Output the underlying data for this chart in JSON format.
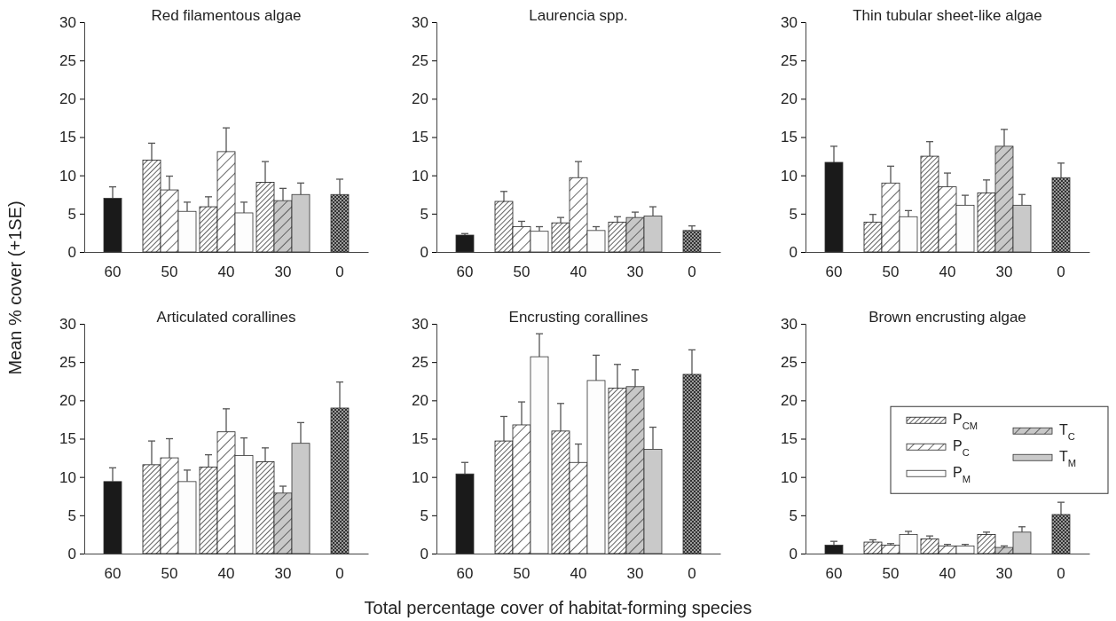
{
  "chart_data": [
    {
      "type": "bar",
      "title": "Red filamentous algae",
      "ylabel": "Mean % cover (+1SE)",
      "categories": [
        "60",
        "50",
        "40",
        "30",
        "0"
      ],
      "ylim": [
        0,
        30
      ],
      "yticks": [
        0,
        5,
        10,
        15,
        20,
        25,
        30
      ],
      "legend": false,
      "series": [
        {
          "color": "#1a1a1a",
          "values": [
            7.0,
            null,
            null,
            null,
            null
          ],
          "errors": [
            1.5,
            null,
            null,
            null,
            null
          ]
        },
        {
          "color": "#1c1c1c",
          "values": [
            null,
            12.0,
            5.9,
            9.1,
            null
          ],
          "errors": [
            null,
            2.2,
            1.3,
            2.7,
            null
          ]
        },
        {
          "color": "#262626",
          "values": [
            null,
            8.1,
            13.1,
            null,
            null
          ],
          "errors": [
            null,
            1.8,
            3.1,
            null,
            null
          ]
        },
        {
          "color": "#fdfdfd",
          "values": [
            null,
            5.3,
            5.1,
            null,
            null
          ],
          "errors": [
            null,
            1.2,
            1.4,
            null,
            null
          ]
        },
        {
          "color": "#303030",
          "values": [
            null,
            null,
            null,
            6.7,
            null
          ],
          "errors": [
            null,
            null,
            null,
            1.6,
            null
          ]
        },
        {
          "color": "#c9c9c9",
          "values": [
            null,
            null,
            null,
            7.5,
            null
          ],
          "errors": [
            null,
            null,
            null,
            1.5,
            null
          ]
        },
        {
          "color": "#333333",
          "values": [
            null,
            null,
            null,
            null,
            7.5
          ],
          "errors": [
            null,
            null,
            null,
            null,
            2.0
          ]
        }
      ]
    },
    {
      "type": "bar",
      "title": "Laurencia spp.",
      "categories": [
        "60",
        "50",
        "40",
        "30",
        "0"
      ],
      "ylim": [
        0,
        30
      ],
      "yticks": [
        0,
        5,
        10,
        15,
        20,
        25,
        30
      ],
      "legend": false,
      "series": [
        {
          "color": "#1a1a1a",
          "values": [
            2.2,
            null,
            null,
            null,
            null
          ],
          "errors": [
            0.2,
            null,
            null,
            null,
            null
          ]
        },
        {
          "color": "#1c1c1c",
          "values": [
            null,
            6.6,
            3.8,
            3.9,
            null
          ],
          "errors": [
            null,
            1.3,
            0.7,
            0.7,
            null
          ]
        },
        {
          "color": "#262626",
          "values": [
            null,
            3.3,
            9.7,
            null,
            null
          ],
          "errors": [
            null,
            0.7,
            2.1,
            null,
            null
          ]
        },
        {
          "color": "#fdfdfd",
          "values": [
            null,
            2.7,
            2.8,
            null,
            null
          ],
          "errors": [
            null,
            0.6,
            0.5,
            null,
            null
          ]
        },
        {
          "color": "#303030",
          "values": [
            null,
            null,
            null,
            4.5,
            null
          ],
          "errors": [
            null,
            null,
            null,
            0.7,
            null
          ]
        },
        {
          "color": "#c9c9c9",
          "values": [
            null,
            null,
            null,
            4.7,
            null
          ],
          "errors": [
            null,
            null,
            null,
            1.2,
            null
          ]
        },
        {
          "color": "#333333",
          "values": [
            null,
            null,
            null,
            null,
            2.8
          ],
          "errors": [
            null,
            null,
            null,
            null,
            0.6
          ]
        }
      ]
    },
    {
      "type": "bar",
      "title": "Thin tubular sheet-like algae",
      "categories": [
        "60",
        "50",
        "40",
        "30",
        "0"
      ],
      "ylim": [
        0,
        30
      ],
      "yticks": [
        0,
        5,
        10,
        15,
        20,
        25,
        30
      ],
      "legend": false,
      "series": [
        {
          "color": "#1a1a1a",
          "values": [
            11.7,
            null,
            null,
            null,
            null
          ],
          "errors": [
            2.1,
            null,
            null,
            null,
            null
          ]
        },
        {
          "color": "#1c1c1c",
          "values": [
            null,
            3.9,
            12.5,
            7.7,
            null
          ],
          "errors": [
            null,
            1.0,
            1.9,
            1.7,
            null
          ]
        },
        {
          "color": "#262626",
          "values": [
            null,
            9.0,
            8.5,
            null,
            null
          ],
          "errors": [
            null,
            2.2,
            1.8,
            null,
            null
          ]
        },
        {
          "color": "#fdfdfd",
          "values": [
            null,
            4.6,
            6.1,
            null,
            null
          ],
          "errors": [
            null,
            0.8,
            1.3,
            null,
            null
          ]
        },
        {
          "color": "#303030",
          "values": [
            null,
            null,
            null,
            13.8,
            null
          ],
          "errors": [
            null,
            null,
            null,
            2.2,
            null
          ]
        },
        {
          "color": "#c9c9c9",
          "values": [
            null,
            null,
            null,
            6.1,
            null
          ],
          "errors": [
            null,
            null,
            null,
            1.4,
            null
          ]
        },
        {
          "color": "#333333",
          "values": [
            null,
            null,
            null,
            null,
            9.7
          ],
          "errors": [
            null,
            null,
            null,
            null,
            1.9
          ]
        }
      ]
    },
    {
      "type": "bar",
      "title": "Articulated corallines",
      "categories": [
        "60",
        "50",
        "40",
        "30",
        "0"
      ],
      "ylim": [
        0,
        30
      ],
      "yticks": [
        0,
        5,
        10,
        15,
        20,
        25,
        30
      ],
      "legend": false,
      "series": [
        {
          "color": "#1a1a1a",
          "values": [
            9.4,
            null,
            null,
            null,
            null
          ],
          "errors": [
            1.8,
            null,
            null,
            null,
            null
          ]
        },
        {
          "color": "#1c1c1c",
          "values": [
            null,
            11.6,
            11.3,
            12.0,
            null
          ],
          "errors": [
            null,
            3.1,
            1.6,
            1.8,
            null
          ]
        },
        {
          "color": "#262626",
          "values": [
            null,
            12.5,
            15.9,
            null,
            null
          ],
          "errors": [
            null,
            2.5,
            3.0,
            null,
            null
          ]
        },
        {
          "color": "#fdfdfd",
          "values": [
            null,
            9.4,
            12.8,
            null,
            null
          ],
          "errors": [
            null,
            1.5,
            2.3,
            null,
            null
          ]
        },
        {
          "color": "#303030",
          "values": [
            null,
            null,
            null,
            7.9,
            null
          ],
          "errors": [
            null,
            null,
            null,
            0.9,
            null
          ]
        },
        {
          "color": "#c9c9c9",
          "values": [
            null,
            null,
            null,
            14.4,
            null
          ],
          "errors": [
            null,
            null,
            null,
            2.7,
            null
          ]
        },
        {
          "color": "#333333",
          "values": [
            null,
            null,
            null,
            null,
            19.0
          ],
          "errors": [
            null,
            null,
            null,
            null,
            3.4
          ]
        }
      ]
    },
    {
      "type": "bar",
      "title": "Encrusting corallines",
      "xlabel": "Total percentage cover of habitat-forming species",
      "categories": [
        "60",
        "50",
        "40",
        "30",
        "0"
      ],
      "ylim": [
        0,
        30
      ],
      "yticks": [
        0,
        5,
        10,
        15,
        20,
        25,
        30
      ],
      "legend": false,
      "series": [
        {
          "color": "#1a1a1a",
          "values": [
            10.4,
            null,
            null,
            null,
            null
          ],
          "errors": [
            1.5,
            null,
            null,
            null,
            null
          ]
        },
        {
          "color": "#1c1c1c",
          "values": [
            null,
            14.7,
            16.0,
            21.6,
            null
          ],
          "errors": [
            null,
            3.2,
            3.6,
            3.1,
            null
          ]
        },
        {
          "color": "#262626",
          "values": [
            null,
            16.8,
            11.9,
            null,
            null
          ],
          "errors": [
            null,
            3.0,
            2.4,
            null,
            null
          ]
        },
        {
          "color": "#fdfdfd",
          "values": [
            null,
            25.7,
            22.6,
            null,
            null
          ],
          "errors": [
            null,
            3.0,
            3.3,
            null,
            null
          ]
        },
        {
          "color": "#303030",
          "values": [
            null,
            null,
            null,
            21.8,
            null
          ],
          "errors": [
            null,
            null,
            null,
            2.2,
            null
          ]
        },
        {
          "color": "#c9c9c9",
          "values": [
            null,
            null,
            null,
            13.6,
            null
          ],
          "errors": [
            null,
            null,
            null,
            2.9,
            null
          ]
        },
        {
          "color": "#333333",
          "values": [
            null,
            null,
            null,
            null,
            23.4
          ],
          "errors": [
            null,
            null,
            null,
            null,
            3.2
          ]
        }
      ]
    },
    {
      "type": "bar",
      "title": "Brown encrusting algae",
      "categories": [
        "60",
        "50",
        "40",
        "30",
        "0"
      ],
      "ylim": [
        0,
        30
      ],
      "yticks": [
        0,
        5,
        10,
        15,
        20,
        25,
        30
      ],
      "legend": "right",
      "series": [
        {
          "color": "#1a1a1a",
          "values": [
            1.1,
            null,
            null,
            null,
            null
          ],
          "errors": [
            0.5,
            null,
            null,
            null,
            null
          ]
        },
        {
          "name": "P$_{CM}$",
          "color": "#1c1c1c",
          "values": [
            null,
            1.5,
            1.9,
            2.5,
            null
          ],
          "errors": [
            null,
            0.3,
            0.4,
            0.3,
            null
          ]
        },
        {
          "name": "P$_{C}$",
          "color": "#262626",
          "values": [
            null,
            1.1,
            1.0,
            null,
            null
          ],
          "errors": [
            null,
            0.2,
            0.2,
            null,
            null
          ]
        },
        {
          "name": "P$_{M}$",
          "color": "#fdfdfd",
          "values": [
            null,
            2.5,
            1.0,
            null,
            null
          ],
          "errors": [
            null,
            0.4,
            0.2,
            null,
            null
          ]
        },
        {
          "name": "T$_{C}$",
          "color": "#303030",
          "values": [
            null,
            null,
            null,
            0.8,
            null
          ],
          "errors": [
            null,
            null,
            null,
            0.2,
            null
          ]
        },
        {
          "name": "T$_{M}$",
          "color": "#c9c9c9",
          "values": [
            null,
            null,
            null,
            2.8,
            null
          ],
          "errors": [
            null,
            null,
            null,
            0.7,
            null
          ]
        },
        {
          "color": "#333333",
          "values": [
            null,
            null,
            null,
            null,
            5.1
          ],
          "errors": [
            null,
            null,
            null,
            null,
            1.6
          ]
        }
      ]
    }
  ]
}
